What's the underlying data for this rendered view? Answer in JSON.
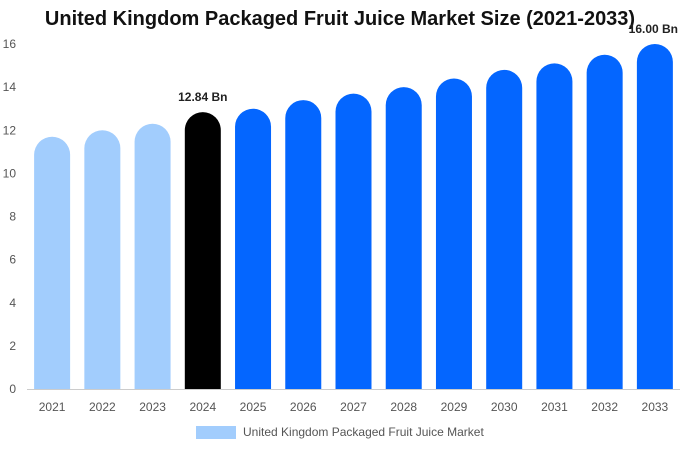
{
  "chart_data": {
    "type": "bar",
    "title": "United Kingdom Packaged Fruit Juice Market Size (2021-2033)",
    "categories": [
      "2021",
      "2022",
      "2023",
      "2024",
      "2025",
      "2026",
      "2027",
      "2028",
      "2029",
      "2030",
      "2031",
      "2032",
      "2033"
    ],
    "series": [
      {
        "name": "United Kingdom Packaged Fruit Juice Market",
        "values": [
          11.7,
          12.0,
          12.3,
          12.84,
          13.0,
          13.4,
          13.7,
          14.0,
          14.4,
          14.8,
          15.1,
          15.5,
          16.0
        ]
      }
    ],
    "bar_colors": [
      "#a2cdfd",
      "#a2cdfd",
      "#a2cdfd",
      "#000000",
      "#0466ff",
      "#0466ff",
      "#0466ff",
      "#0466ff",
      "#0466ff",
      "#0466ff",
      "#0466ff",
      "#0466ff",
      "#0466ff"
    ],
    "data_labels": [
      "",
      "",
      "",
      "12.84 Bn",
      "",
      "",
      "",
      "",
      "",
      "",
      "",
      "",
      "16.00 Bn"
    ],
    "y_ticks": [
      0,
      2,
      4,
      6,
      8,
      10,
      12,
      14,
      16
    ],
    "ylim": [
      0,
      16
    ],
    "xlabel": "",
    "ylabel": "",
    "grid": false,
    "legend_position": "bottom",
    "legend_color": "#a2cdfd"
  }
}
